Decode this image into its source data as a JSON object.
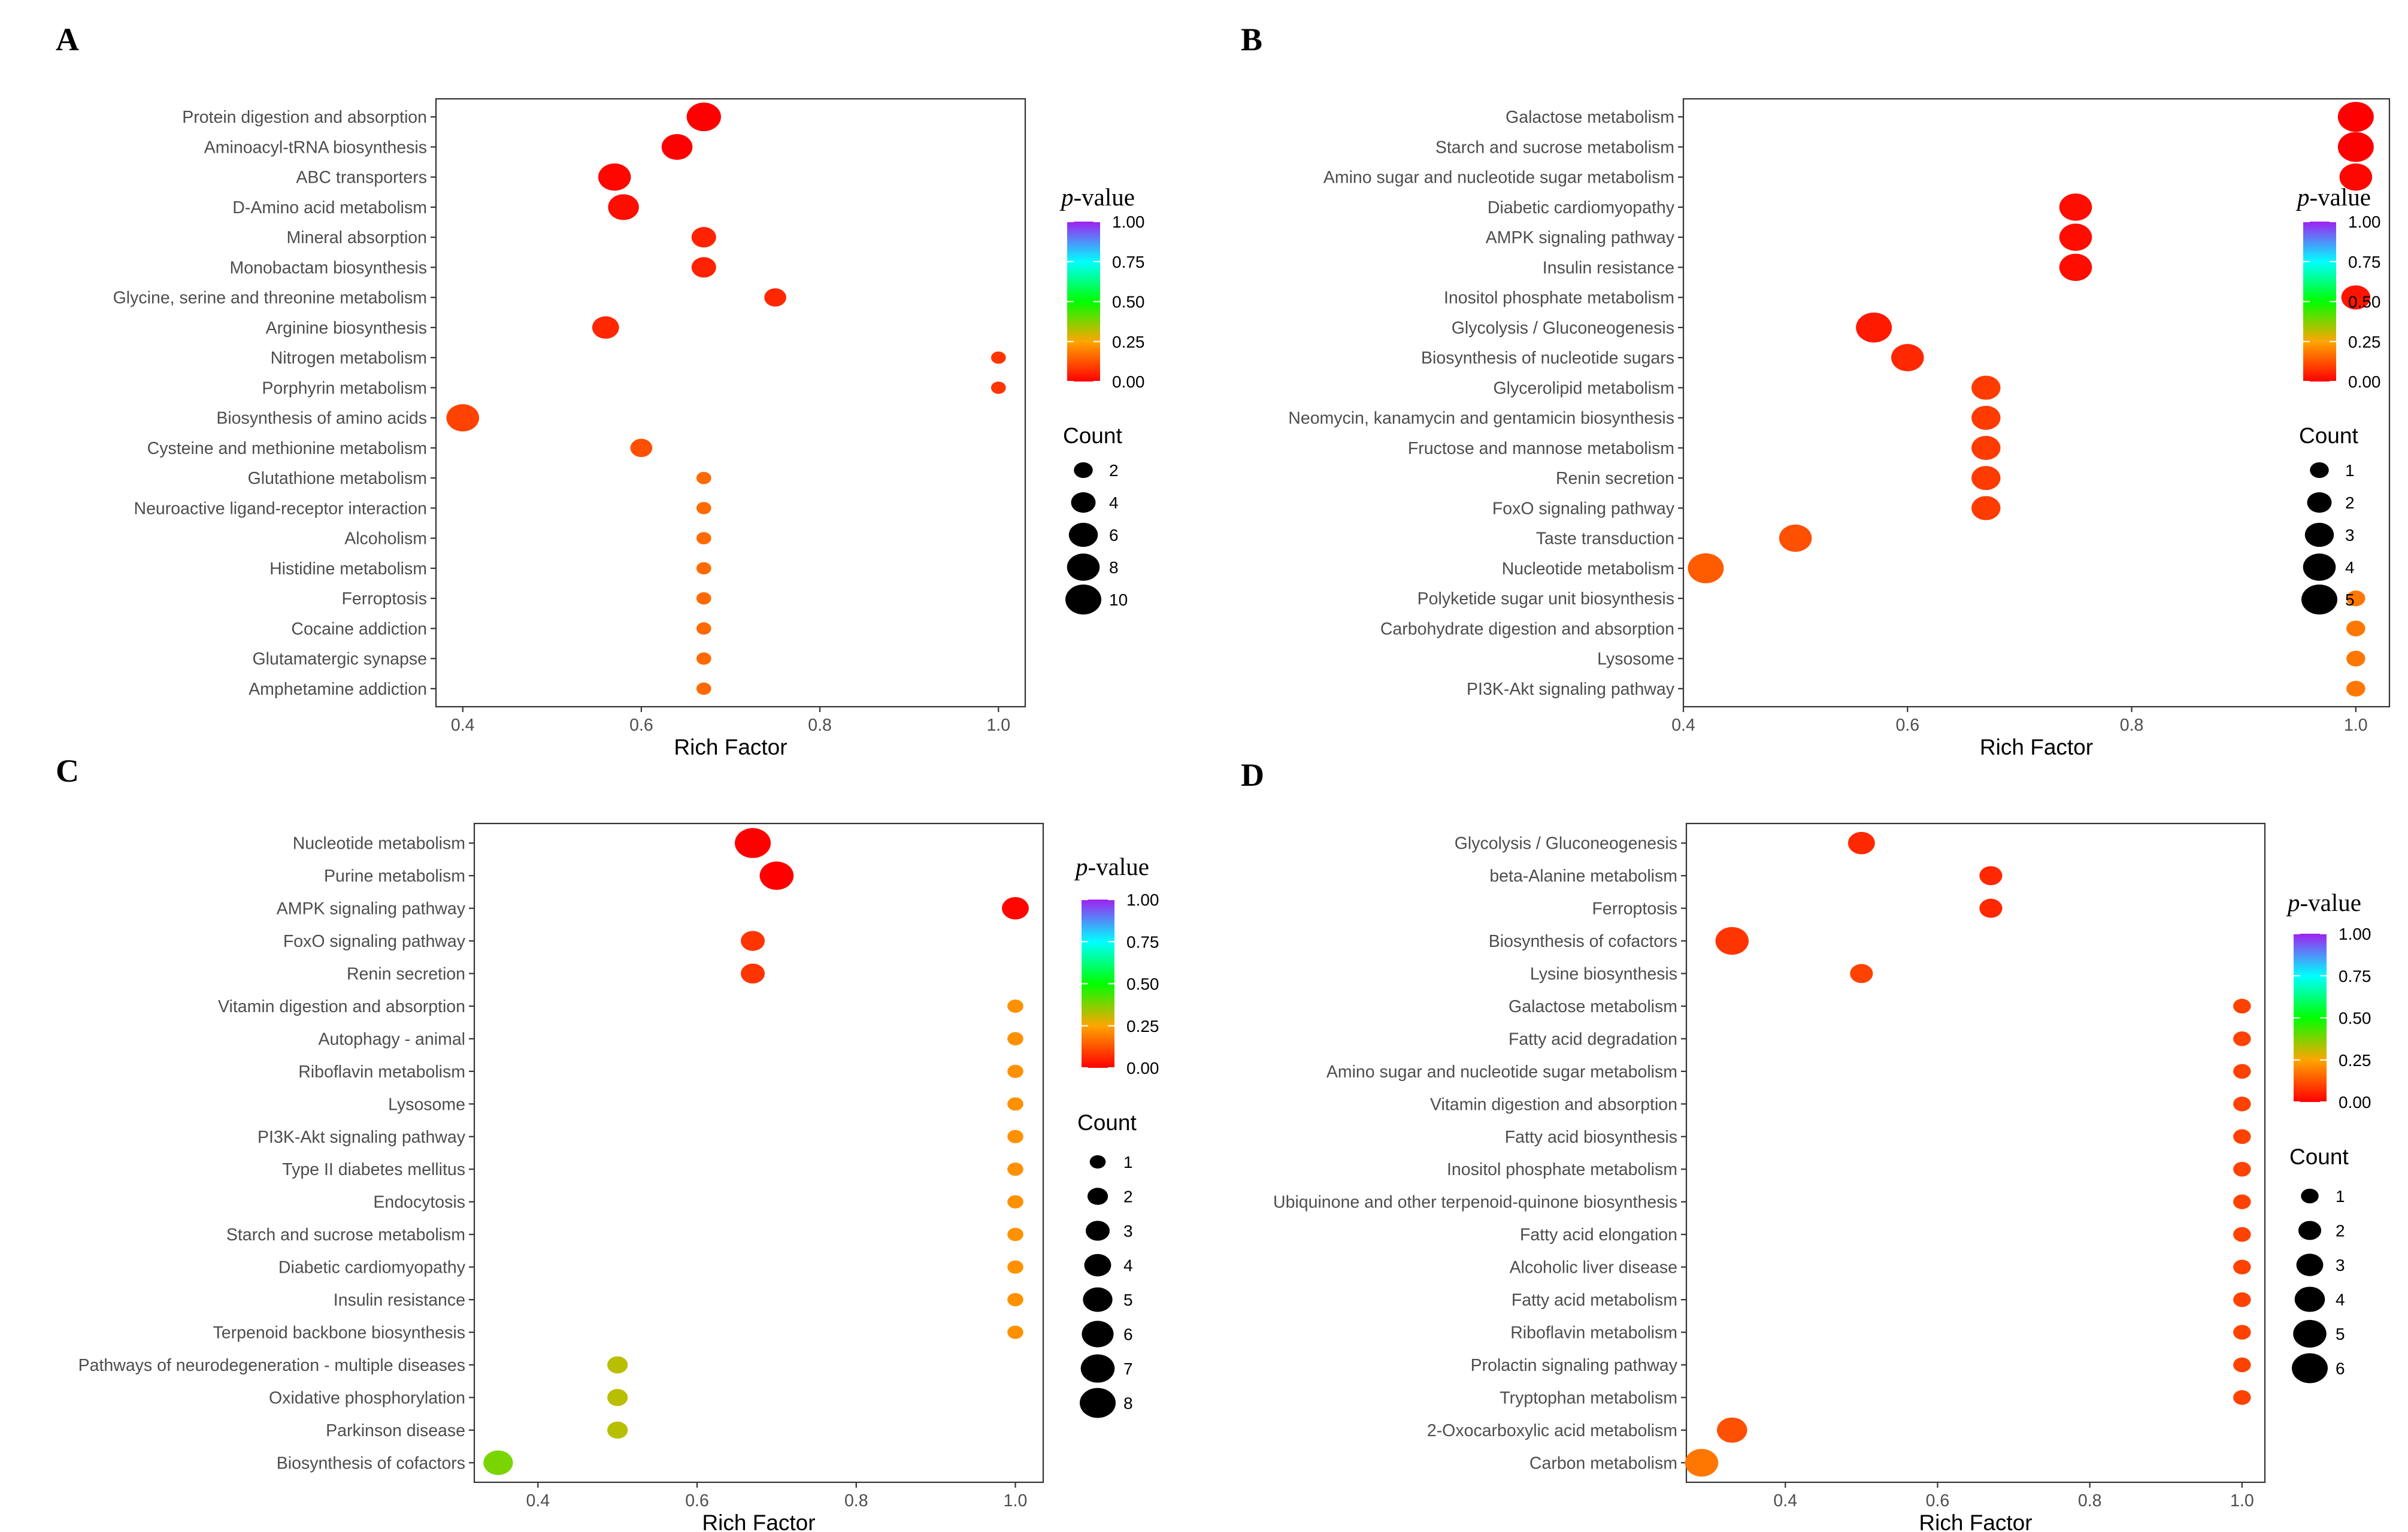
{
  "colors": {
    "low": "#ff0000",
    "mid1": "#ffa500",
    "mid2": "#00ff00",
    "mid3": "#00ffff",
    "high": "#a020f0"
  },
  "chart_data": [
    {
      "panel": "A",
      "type": "scatter",
      "xlabel": "Rich Factor",
      "xlim": [
        0.37,
        1.03
      ],
      "xticks": [
        0.4,
        0.6,
        0.8,
        1.0
      ],
      "xtick_labels": [
        "0.4",
        "0.6",
        "0.8",
        "1.0"
      ],
      "legend": {
        "color_title_italic": "p",
        "color_title_rest": "-value",
        "color_ticks": [
          "1.00",
          "0.75",
          "0.50",
          "0.25",
          "0.00"
        ],
        "size_title": "Count",
        "size_values": [
          "2",
          "4",
          "6",
          "8",
          "10"
        ],
        "size_max": 10
      },
      "pathways": [
        {
          "label": "Protein digestion and absorption",
          "rich": 0.67,
          "count": 9,
          "p": 0.0
        },
        {
          "label": "Aminoacyl-tRNA biosynthesis",
          "rich": 0.64,
          "count": 7,
          "p": 0.0
        },
        {
          "label": "ABC transporters",
          "rich": 0.57,
          "count": 8,
          "p": 0.01
        },
        {
          "label": "D-Amino acid metabolism",
          "rich": 0.58,
          "count": 7,
          "p": 0.02
        },
        {
          "label": "Mineral absorption",
          "rich": 0.67,
          "count": 4,
          "p": 0.05
        },
        {
          "label": "Monobactam biosynthesis",
          "rich": 0.67,
          "count": 4,
          "p": 0.05
        },
        {
          "label": "Glycine, serine and threonine metabolism",
          "rich": 0.75,
          "count": 3,
          "p": 0.06
        },
        {
          "label": "Arginine biosynthesis",
          "rich": 0.56,
          "count": 5,
          "p": 0.06
        },
        {
          "label": "Nitrogen metabolism",
          "rich": 1.0,
          "count": 1,
          "p": 0.08
        },
        {
          "label": "Porphyrin metabolism",
          "rich": 1.0,
          "count": 1,
          "p": 0.08
        },
        {
          "label": "Biosynthesis of amino acids",
          "rich": 0.4,
          "count": 8,
          "p": 0.1
        },
        {
          "label": "Cysteine and methionine metabolism",
          "rich": 0.6,
          "count": 3,
          "p": 0.12
        },
        {
          "label": "Glutathione metabolism",
          "rich": 0.67,
          "count": 1,
          "p": 0.16
        },
        {
          "label": "Neuroactive ligand-receptor interaction",
          "rich": 0.67,
          "count": 1,
          "p": 0.16
        },
        {
          "label": "Alcoholism",
          "rich": 0.67,
          "count": 1,
          "p": 0.16
        },
        {
          "label": "Histidine metabolism",
          "rich": 0.67,
          "count": 1,
          "p": 0.16
        },
        {
          "label": "Ferroptosis",
          "rich": 0.67,
          "count": 1,
          "p": 0.16
        },
        {
          "label": "Cocaine addiction",
          "rich": 0.67,
          "count": 1,
          "p": 0.16
        },
        {
          "label": "Glutamatergic synapse",
          "rich": 0.67,
          "count": 1,
          "p": 0.16
        },
        {
          "label": "Amphetamine addiction",
          "rich": 0.67,
          "count": 1,
          "p": 0.16
        }
      ]
    },
    {
      "panel": "B",
      "type": "scatter",
      "xlabel": "Rich Factor",
      "xlim": [
        0.4,
        1.03
      ],
      "xticks": [
        0.4,
        0.6,
        0.8,
        1.0
      ],
      "xtick_labels": [
        "0.4",
        "0.6",
        "0.8",
        "1.0"
      ],
      "legend": {
        "color_title_italic": "p",
        "color_title_rest": "-value",
        "color_ticks": [
          "1.00",
          "0.75",
          "0.50",
          "0.25",
          "0.00"
        ],
        "size_title": "Count",
        "size_values": [
          "1",
          "2",
          "3",
          "4",
          "5"
        ],
        "size_max": 5
      },
      "pathways": [
        {
          "label": "Galactose metabolism",
          "rich": 1.0,
          "count": 5,
          "p": 0.0
        },
        {
          "label": "Starch and sucrose metabolism",
          "rich": 1.0,
          "count": 5,
          "p": 0.0
        },
        {
          "label": "Amino sugar and nucleotide sugar metabolism",
          "rich": 1.0,
          "count": 4,
          "p": 0.01
        },
        {
          "label": "Diabetic cardiomyopathy",
          "rich": 0.75,
          "count": 4,
          "p": 0.02
        },
        {
          "label": "AMPK signaling pathway",
          "rich": 0.75,
          "count": 4,
          "p": 0.02
        },
        {
          "label": "Insulin resistance",
          "rich": 0.75,
          "count": 4,
          "p": 0.02
        },
        {
          "label": "Inositol phosphate metabolism",
          "rich": 1.0,
          "count": 3,
          "p": 0.03
        },
        {
          "label": "Glycolysis / Gluconeogenesis",
          "rich": 0.57,
          "count": 5,
          "p": 0.04
        },
        {
          "label": "Biosynthesis of nucleotide sugars",
          "rich": 0.6,
          "count": 4,
          "p": 0.06
        },
        {
          "label": "Glycerolipid metabolism",
          "rich": 0.67,
          "count": 3,
          "p": 0.09
        },
        {
          "label": "Neomycin, kanamycin and gentamicin biosynthesis",
          "rich": 0.67,
          "count": 3,
          "p": 0.09
        },
        {
          "label": "Fructose and mannose metabolism",
          "rich": 0.67,
          "count": 3,
          "p": 0.09
        },
        {
          "label": "Renin secretion",
          "rich": 0.67,
          "count": 3,
          "p": 0.09
        },
        {
          "label": "FoxO signaling pathway",
          "rich": 0.67,
          "count": 3,
          "p": 0.09
        },
        {
          "label": "Taste transduction",
          "rich": 0.5,
          "count": 4,
          "p": 0.12
        },
        {
          "label": "Nucleotide metabolism",
          "rich": 0.42,
          "count": 5,
          "p": 0.14
        },
        {
          "label": "Polyketide sugar unit biosynthesis",
          "rich": 1.0,
          "count": 1,
          "p": 0.18
        },
        {
          "label": "Carbohydrate digestion and absorption",
          "rich": 1.0,
          "count": 1,
          "p": 0.18
        },
        {
          "label": "Lysosome",
          "rich": 1.0,
          "count": 1,
          "p": 0.18
        },
        {
          "label": "PI3K-Akt signaling pathway",
          "rich": 1.0,
          "count": 1,
          "p": 0.18
        }
      ]
    },
    {
      "panel": "C",
      "type": "scatter",
      "xlabel": "Rich Factor",
      "xlim": [
        0.32,
        1.035
      ],
      "xticks": [
        0.4,
        0.6,
        0.8,
        1.0
      ],
      "xtick_labels": [
        "0.4",
        "0.6",
        "0.8",
        "1.0"
      ],
      "legend": {
        "color_title_italic": "p",
        "color_title_rest": "-value",
        "color_ticks": [
          "1.00",
          "0.75",
          "0.50",
          "0.25",
          "0.00"
        ],
        "size_title": "Count",
        "size_values": [
          "1",
          "2",
          "3",
          "4",
          "5",
          "6",
          "7",
          "8"
        ],
        "size_max": 8
      },
      "pathways": [
        {
          "label": "Nucleotide metabolism",
          "rich": 0.67,
          "count": 8,
          "p": 0.0
        },
        {
          "label": "Purine metabolism",
          "rich": 0.7,
          "count": 7,
          "p": 0.0
        },
        {
          "label": "AMPK signaling pathway",
          "rich": 1.0,
          "count": 4,
          "p": 0.01
        },
        {
          "label": "FoxO signaling pathway",
          "rich": 0.67,
          "count": 3,
          "p": 0.08
        },
        {
          "label": "Renin secretion",
          "rich": 0.67,
          "count": 3,
          "p": 0.08
        },
        {
          "label": "Vitamin digestion and absorption",
          "rich": 1.0,
          "count": 1,
          "p": 0.22
        },
        {
          "label": "Autophagy - animal",
          "rich": 1.0,
          "count": 1,
          "p": 0.22
        },
        {
          "label": "Riboflavin metabolism",
          "rich": 1.0,
          "count": 1,
          "p": 0.22
        },
        {
          "label": "Lysosome",
          "rich": 1.0,
          "count": 1,
          "p": 0.22
        },
        {
          "label": "PI3K-Akt signaling pathway",
          "rich": 1.0,
          "count": 1,
          "p": 0.22
        },
        {
          "label": "Type II diabetes mellitus",
          "rich": 1.0,
          "count": 1,
          "p": 0.22
        },
        {
          "label": "Endocytosis",
          "rich": 1.0,
          "count": 1,
          "p": 0.22
        },
        {
          "label": "Starch and sucrose metabolism",
          "rich": 1.0,
          "count": 1,
          "p": 0.22
        },
        {
          "label": "Diabetic cardiomyopathy",
          "rich": 1.0,
          "count": 1,
          "p": 0.22
        },
        {
          "label": "Insulin resistance",
          "rich": 1.0,
          "count": 1,
          "p": 0.22
        },
        {
          "label": "Terpenoid backbone biosynthesis",
          "rich": 1.0,
          "count": 1,
          "p": 0.22
        },
        {
          "label": "Pathways of neurodegeneration - multiple diseases",
          "rich": 0.5,
          "count": 2,
          "p": 0.32
        },
        {
          "label": "Oxidative phosphorylation",
          "rich": 0.5,
          "count": 2,
          "p": 0.32
        },
        {
          "label": "Parkinson disease",
          "rich": 0.5,
          "count": 2,
          "p": 0.32
        },
        {
          "label": "Biosynthesis of cofactors",
          "rich": 0.35,
          "count": 5,
          "p": 0.38
        }
      ]
    },
    {
      "panel": "D",
      "type": "scatter",
      "xlabel": "Rich Factor",
      "xlim": [
        0.27,
        1.03
      ],
      "xticks": [
        0.4,
        0.6,
        0.8,
        1.0
      ],
      "xtick_labels": [
        "0.4",
        "0.6",
        "0.8",
        "1.0"
      ],
      "legend": {
        "color_title_italic": "p",
        "color_title_rest": "-value",
        "color_ticks": [
          "1.00",
          "0.75",
          "0.50",
          "0.25",
          "0.00"
        ],
        "size_title": "Count",
        "size_values": [
          "1",
          "2",
          "3",
          "4",
          "5",
          "6"
        ],
        "size_max": 6
      },
      "pathways": [
        {
          "label": "Glycolysis / Gluconeogenesis",
          "rich": 0.5,
          "count": 3,
          "p": 0.06
        },
        {
          "label": "beta-Alanine metabolism",
          "rich": 0.67,
          "count": 2,
          "p": 0.06
        },
        {
          "label": "Ferroptosis",
          "rich": 0.67,
          "count": 2,
          "p": 0.06
        },
        {
          "label": "Biosynthesis of cofactors",
          "rich": 0.33,
          "count": 5,
          "p": 0.08
        },
        {
          "label": "Lysine biosynthesis",
          "rich": 0.5,
          "count": 2,
          "p": 0.1
        },
        {
          "label": "Galactose metabolism",
          "rich": 1.0,
          "count": 1,
          "p": 0.1
        },
        {
          "label": "Fatty acid degradation",
          "rich": 1.0,
          "count": 1,
          "p": 0.1
        },
        {
          "label": "Amino sugar and nucleotide sugar metabolism",
          "rich": 1.0,
          "count": 1,
          "p": 0.1
        },
        {
          "label": "Vitamin digestion and absorption",
          "rich": 1.0,
          "count": 1,
          "p": 0.1
        },
        {
          "label": "Fatty acid biosynthesis",
          "rich": 1.0,
          "count": 1,
          "p": 0.1
        },
        {
          "label": "Inositol phosphate metabolism",
          "rich": 1.0,
          "count": 1,
          "p": 0.1
        },
        {
          "label": "Ubiquinone and other terpenoid-quinone biosynthesis",
          "rich": 1.0,
          "count": 1,
          "p": 0.1
        },
        {
          "label": "Fatty acid elongation",
          "rich": 1.0,
          "count": 1,
          "p": 0.1
        },
        {
          "label": "Alcoholic liver disease",
          "rich": 1.0,
          "count": 1,
          "p": 0.1
        },
        {
          "label": "Fatty acid metabolism",
          "rich": 1.0,
          "count": 1,
          "p": 0.1
        },
        {
          "label": "Riboflavin metabolism",
          "rich": 1.0,
          "count": 1,
          "p": 0.1
        },
        {
          "label": "Prolactin signaling pathway",
          "rich": 1.0,
          "count": 1,
          "p": 0.1
        },
        {
          "label": "Tryptophan metabolism",
          "rich": 1.0,
          "count": 1,
          "p": 0.1
        },
        {
          "label": "2-Oxocarboxylic acid metabolism",
          "rich": 0.33,
          "count": 4,
          "p": 0.12
        },
        {
          "label": "Carbon metabolism",
          "rich": 0.29,
          "count": 5,
          "p": 0.18
        }
      ]
    }
  ]
}
